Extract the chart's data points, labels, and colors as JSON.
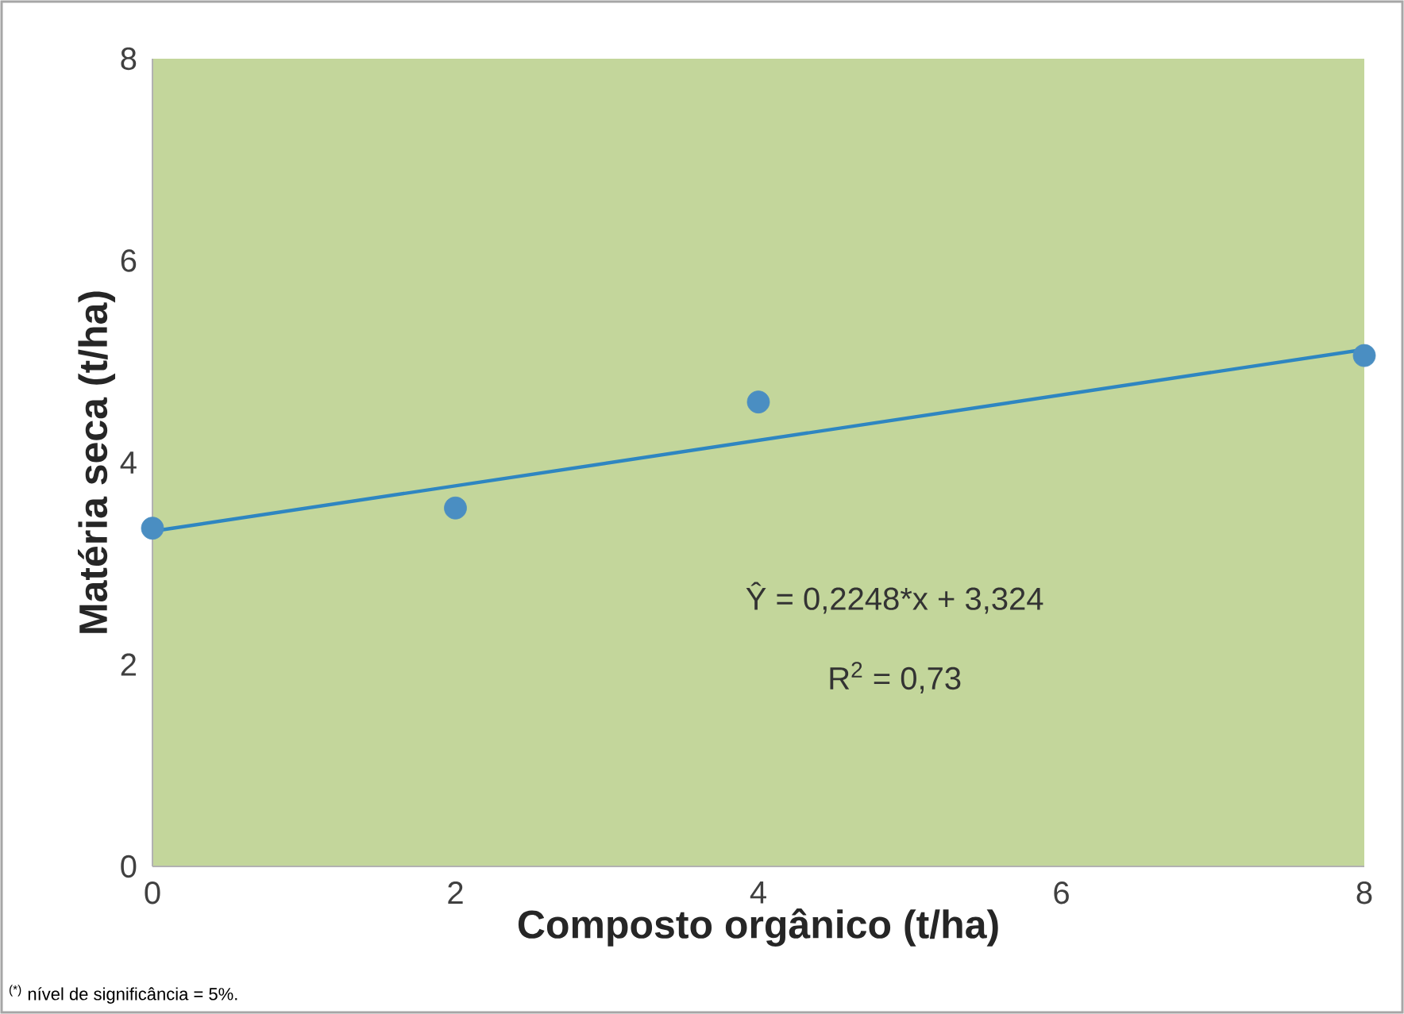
{
  "chart_data": {
    "type": "scatter",
    "xlabel": "Composto orgânico (t/ha)",
    "ylabel": "Matéria seca (t/ha)",
    "xlim": [
      0,
      8
    ],
    "ylim": [
      0,
      8
    ],
    "xticks": [
      0,
      2,
      4,
      6,
      8
    ],
    "yticks": [
      0,
      2,
      4,
      6,
      8
    ],
    "series": [
      {
        "color": "#4a8ec2",
        "marker": "circle",
        "x": [
          0,
          2,
          4,
          8
        ],
        "values": [
          3.35,
          3.55,
          4.6,
          5.06
        ]
      },
      {
        "type": "line",
        "color": "#2e86c1",
        "x": [
          0,
          8
        ],
        "values": [
          3.32,
          5.12
        ],
        "line_style": "solid",
        "marker": "none"
      }
    ],
    "annotations": [
      "Ŷ = 0,2248*x + 3,324",
      "R$^{2}$ = 0,73",
      "$^{(*)}$ nível de significância = 5%."
    ]
  }
}
